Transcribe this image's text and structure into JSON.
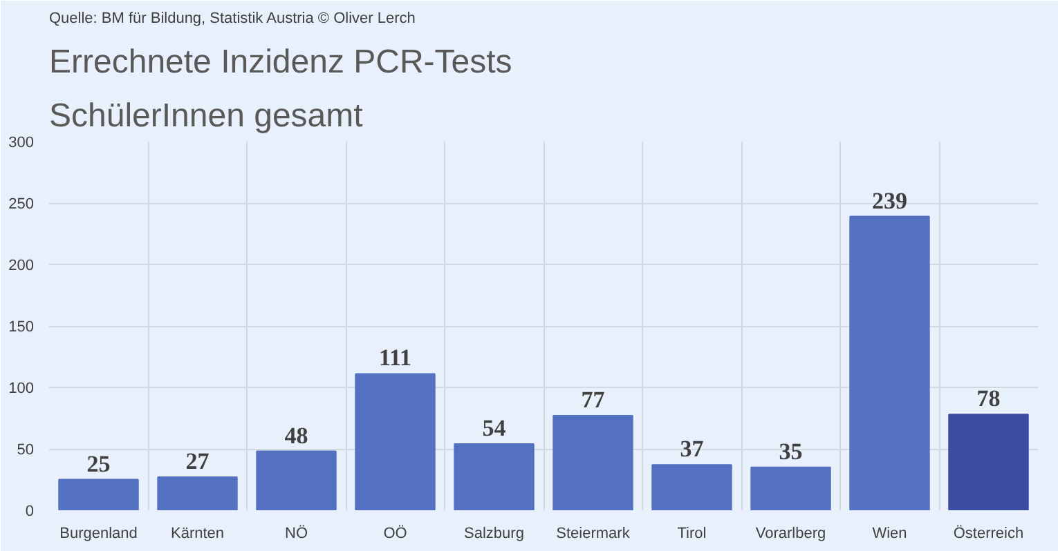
{
  "chart_data": {
    "type": "bar",
    "title": "Errechnete Inzidenz PCR-Tests",
    "subtitle": "SchülerInnen gesamt",
    "annotations": [
      "Quelle: BM für Bildung, Statistik Austria © Oliver Lerch"
    ],
    "categories": [
      "Burgenland",
      "Kärnten",
      "NÖ",
      "OÖ",
      "Salzburg",
      "Steiermark",
      "Tirol",
      "Vorarlberg",
      "Wien",
      "Österreich"
    ],
    "values": [
      25,
      27,
      48,
      111,
      54,
      77,
      37,
      35,
      239,
      78
    ],
    "colors": [
      "#5470c0",
      "#5470c0",
      "#5470c0",
      "#5470c0",
      "#5470c0",
      "#5470c0",
      "#5470c0",
      "#5470c0",
      "#5470c0",
      "#3b4ba0"
    ],
    "ylim": [
      0,
      300
    ],
    "yticks": [
      0,
      50,
      100,
      150,
      200,
      250,
      300
    ],
    "grid": true,
    "data_labels": true
  }
}
